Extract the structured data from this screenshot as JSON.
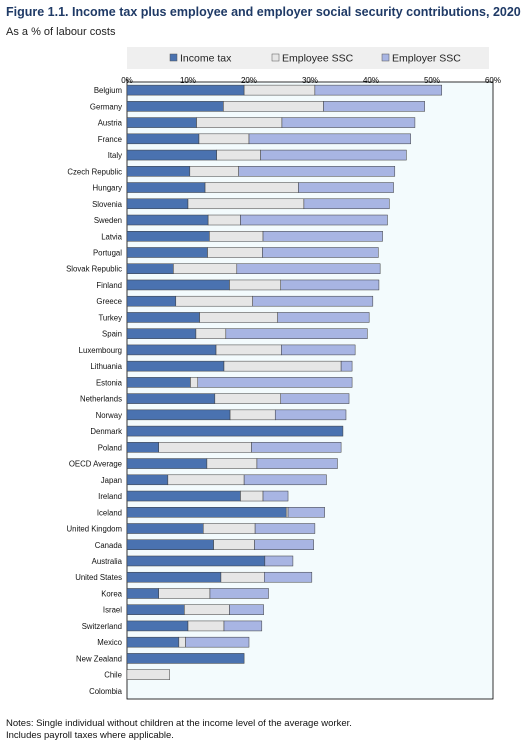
{
  "title": "Figure 1.1. Income tax plus employee and employer social security contributions, 2020",
  "subtitle": "As a % of labour costs",
  "notes": [
    "Notes: Single individual without children at the income level of the average worker.",
    "Includes payroll taxes where applicable."
  ],
  "chart_data": {
    "type": "bar",
    "orientation": "horizontal",
    "stacked": true,
    "xlim": [
      0,
      60
    ],
    "xticks": [
      "0%",
      "10%",
      "20%",
      "30%",
      "40%",
      "50%",
      "60%"
    ],
    "grid": false,
    "legend_position": "top",
    "categories": [
      "Belgium",
      "Germany",
      "Austria",
      "France",
      "Italy",
      "Czech Republic",
      "Hungary",
      "Slovenia",
      "Sweden",
      "Latvia",
      "Portugal",
      "Slovak Republic",
      "Finland",
      "Greece",
      "Turkey",
      "Spain",
      "Luxembourg",
      "Lithuania",
      "Estonia",
      "Netherlands",
      "Norway",
      "Denmark",
      "Poland",
      "OECD Average",
      "Japan",
      "Ireland",
      "Iceland",
      "United Kingdom",
      "Canada",
      "Australia",
      "United States",
      "Korea",
      "Israel",
      "Switzerland",
      "Mexico",
      "New Zealand",
      "Chile",
      "Colombia"
    ],
    "series": [
      {
        "name": "Income tax",
        "color": "#4a72b0",
        "values": [
          19.2,
          15.8,
          11.4,
          11.8,
          14.7,
          10.3,
          12.8,
          10.0,
          13.3,
          13.5,
          13.2,
          7.6,
          16.8,
          8.0,
          11.9,
          11.3,
          14.6,
          15.9,
          10.4,
          14.4,
          16.9,
          35.4,
          5.2,
          13.1,
          6.7,
          18.6,
          26.1,
          12.5,
          14.2,
          22.6,
          15.4,
          5.2,
          9.4,
          10.0,
          8.5,
          19.2,
          0.0,
          0.0
        ]
      },
      {
        "name": "Employee SSC",
        "color": "#e6e6e6",
        "values": [
          11.6,
          16.4,
          14.0,
          8.2,
          7.2,
          8.0,
          15.3,
          19.0,
          5.3,
          8.8,
          9.0,
          10.4,
          8.4,
          12.6,
          12.8,
          4.9,
          10.7,
          19.2,
          1.2,
          10.8,
          7.4,
          0.0,
          15.2,
          8.2,
          12.5,
          3.7,
          0.3,
          8.5,
          6.7,
          0.0,
          7.1,
          8.4,
          7.4,
          5.9,
          1.1,
          0.0,
          7.0,
          0.0
        ]
      },
      {
        "name": "Employer SSC",
        "color": "#a8b5e3",
        "values": [
          20.8,
          16.6,
          21.8,
          26.5,
          23.9,
          25.6,
          15.6,
          14.0,
          24.1,
          19.6,
          19.0,
          23.5,
          16.1,
          19.7,
          15.0,
          23.2,
          12.1,
          1.8,
          25.3,
          11.2,
          11.6,
          0.0,
          14.7,
          13.2,
          13.5,
          4.1,
          6.0,
          9.8,
          9.7,
          4.6,
          7.8,
          9.6,
          5.6,
          6.2,
          10.4,
          0.0,
          0.0,
          0.0
        ]
      }
    ]
  }
}
